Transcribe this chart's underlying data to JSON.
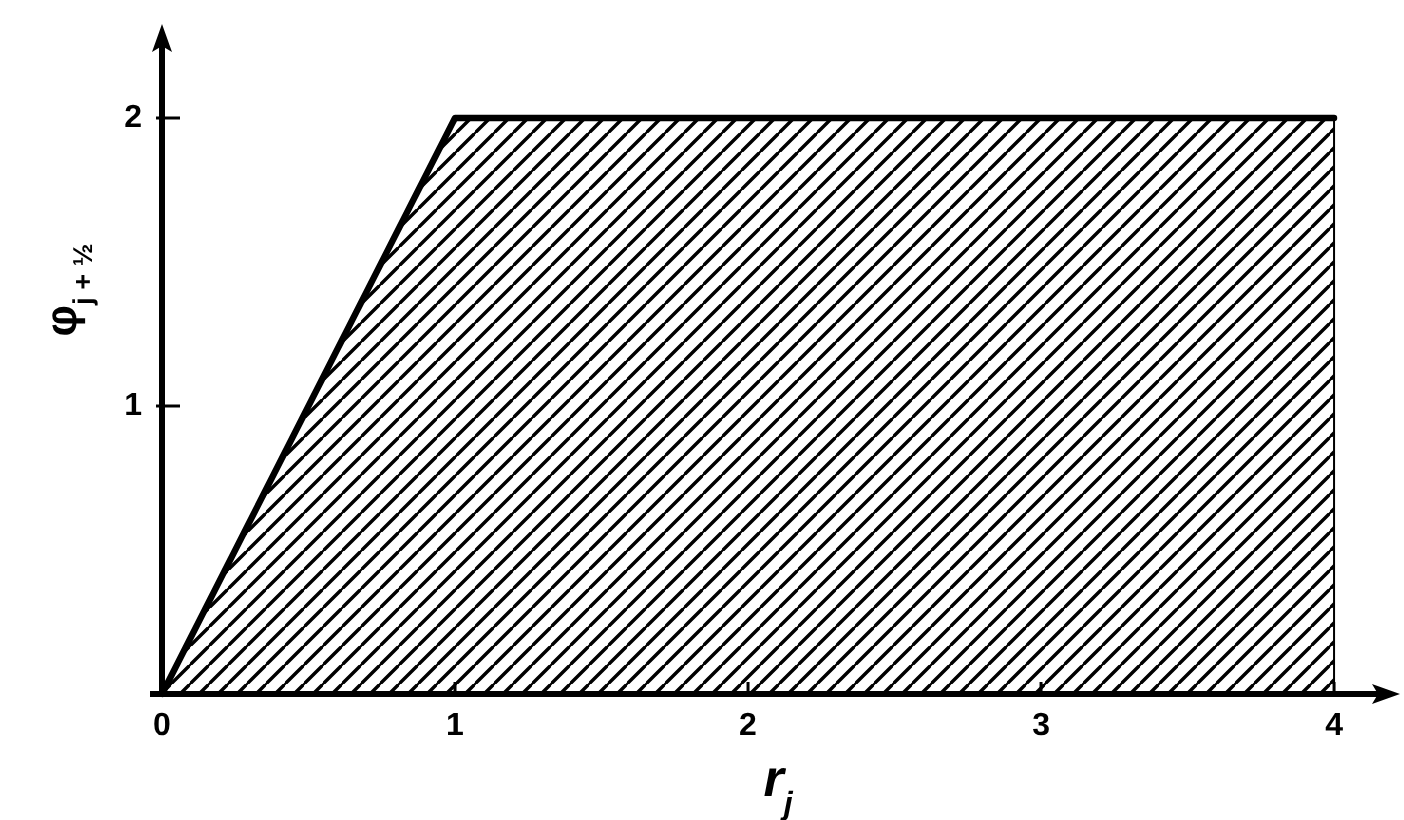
{
  "chart_data": {
    "type": "area",
    "xlabel": "r$_{j}$",
    "ylabel": "φ$_{j + ½}$",
    "x": [
      0,
      1,
      4
    ],
    "series": [
      {
        "color": "#000000",
        "values": [
          0,
          2,
          2
        ]
      }
    ],
    "xlim": [
      0,
      4.15
    ],
    "ylim": [
      0,
      2.25
    ],
    "xticks": [
      0,
      1,
      2,
      3,
      4
    ],
    "yticks": [
      1,
      2
    ]
  }
}
